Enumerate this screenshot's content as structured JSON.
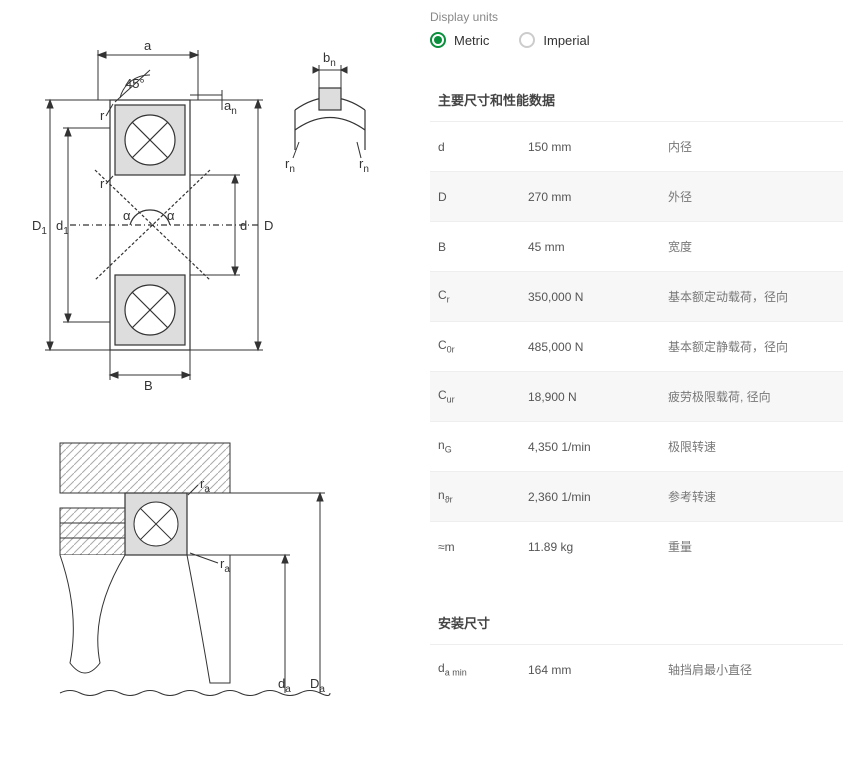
{
  "units": {
    "label": "Display units",
    "metric": "Metric",
    "imperial": "Imperial",
    "selected": "metric"
  },
  "sections": {
    "main": "主要尺寸和性能数据",
    "mounting": "安装尺寸"
  },
  "specs": [
    {
      "sym": "d",
      "sub": "",
      "val": "150 mm",
      "desc": "内径",
      "alt": false
    },
    {
      "sym": "D",
      "sub": "",
      "val": "270 mm",
      "desc": "外径",
      "alt": true
    },
    {
      "sym": "B",
      "sub": "",
      "val": "45 mm",
      "desc": "宽度",
      "alt": false
    },
    {
      "sym": "C",
      "sub": "r",
      "val": "350,000 N",
      "desc": "基本额定动载荷，径向",
      "alt": true
    },
    {
      "sym": "C",
      "sub": "0r",
      "val": "485,000 N",
      "desc": "基本额定静载荷，径向",
      "alt": false
    },
    {
      "sym": "C",
      "sub": "ur",
      "val": "18,900 N",
      "desc": "疲劳极限载荷, 径向",
      "alt": true
    },
    {
      "sym": "n",
      "sub": "G",
      "val": "4,350 1/min",
      "desc": "极限转速",
      "alt": false
    },
    {
      "sym": "n",
      "sub": "ϑr",
      "val": "2,360 1/min",
      "desc": "参考转速",
      "alt": true
    },
    {
      "sym": "≈m",
      "sub": "",
      "val": "11.89 kg",
      "desc": "重量",
      "alt": false
    }
  ],
  "mounting": [
    {
      "sym": "d",
      "sub": "a min",
      "val": "164 mm",
      "desc": "轴挡肩最小直径",
      "alt": false
    }
  ],
  "diagram1": {
    "labels": {
      "a": "a",
      "bn": "b",
      "bn_sub": "n",
      "an": "a",
      "an_sub": "n",
      "ang45": "45°",
      "r": "r",
      "rn": "r",
      "rn_sub": "n",
      "D1": "D",
      "D1_sub": "1",
      "d1": "d",
      "d1_sub": "1",
      "alpha": "α",
      "d": "d",
      "D": "D",
      "B": "B"
    },
    "colors": {
      "stroke": "#333333",
      "hatch": "#888888",
      "fill_grey": "#dddddd"
    }
  },
  "diagram2": {
    "labels": {
      "ra": "r",
      "ra_sub": "a",
      "da": "d",
      "da_sub": "a",
      "Da": "D",
      "Da_sub": "a"
    },
    "colors": {
      "stroke": "#333333",
      "hatch": "#aaaaaa",
      "fill_grey": "#dddddd"
    }
  }
}
